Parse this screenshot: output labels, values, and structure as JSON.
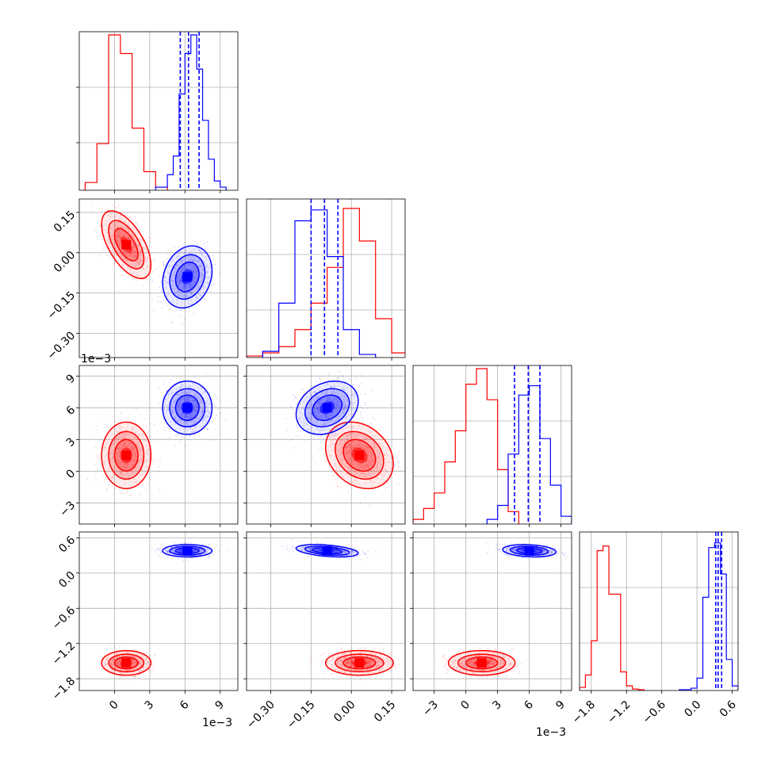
{
  "chart_data": {
    "type": "corner",
    "series": [
      {
        "color": "#ff0000",
        "x1_hist": {
          "edges_e3": [
            -2.5,
            -1.5,
            -0.5,
            0.5,
            1.5,
            2.5,
            3.5,
            4.5
          ],
          "counts": [
            0.05,
            0.3,
            1.0,
            0.88,
            0.4,
            0.12,
            0.02
          ]
        },
        "x2_hist": {
          "edges": [
            -0.39,
            -0.33,
            -0.27,
            -0.21,
            -0.15,
            -0.09,
            -0.03,
            0.03,
            0.09,
            0.15,
            0.21
          ],
          "counts": [
            0.01,
            0.03,
            0.07,
            0.18,
            0.35,
            0.58,
            0.96,
            0.75,
            0.25,
            0.03
          ]
        },
        "x3_hist": {
          "edges_e3": [
            -5,
            -4,
            -3,
            -2,
            -1,
            0,
            1,
            2,
            3,
            4,
            5
          ],
          "counts": [
            0.03,
            0.1,
            0.2,
            0.4,
            0.6,
            0.9,
            1.0,
            0.8,
            0.35,
            0.08
          ]
        },
        "x4_hist": {
          "edges": [
            -2.0,
            -1.9,
            -1.8,
            -1.7,
            -1.6,
            -1.5,
            -1.4,
            -1.3,
            -1.2,
            -1.1,
            -1.0,
            -0.9
          ],
          "counts": [
            0.02,
            0.1,
            0.32,
            0.9,
            0.93,
            0.62,
            0.62,
            0.12,
            0.03,
            0.01,
            0.005
          ]
        },
        "x1": {
          "mean_e3": 1.0,
          "sd_e3": 1.0
        },
        "x2": {
          "mean": 0.03,
          "sd": 0.06
        },
        "x3": {
          "mean_e3": 1.5,
          "sd_e3": 1.5
        },
        "x4": {
          "mean": -1.53,
          "sd": 0.1
        },
        "corr": {
          "x1_x2": -0.6,
          "x1_x3": 0.0,
          "x2_x3": -0.25,
          "x1_x4": 0.0,
          "x2_x4": 0.0,
          "x3_x4": 0.0
        }
      },
      {
        "color": "#0000ff",
        "x1_hist": {
          "edges_e3": [
            3.5,
            4.5,
            5.0,
            5.5,
            6.0,
            6.5,
            7.0,
            7.5,
            8.0,
            8.5,
            9.0,
            9.5
          ],
          "counts": [
            0.02,
            0.1,
            0.22,
            0.62,
            0.88,
            1.0,
            0.78,
            0.45,
            0.2,
            0.06,
            0.02
          ]
        },
        "x2_hist": {
          "edges": [
            -0.33,
            -0.27,
            -0.21,
            -0.15,
            -0.09,
            -0.03,
            0.03,
            0.09
          ],
          "counts": [
            0.04,
            0.35,
            0.88,
            0.95,
            0.65,
            0.18,
            0.02
          ]
        },
        "x3_hist": {
          "edges_e3": [
            2,
            3,
            4,
            5,
            6,
            7,
            8,
            9,
            10
          ],
          "counts": [
            0.03,
            0.12,
            0.45,
            0.83,
            0.89,
            0.55,
            0.25,
            0.05
          ]
        },
        "x4_hist": {
          "edges": [
            -0.3,
            -0.1,
            0.0,
            0.1,
            0.2,
            0.3,
            0.4,
            0.5,
            0.6,
            0.7
          ],
          "counts": [
            0.005,
            0.015,
            0.08,
            0.6,
            0.92,
            0.95,
            0.75,
            0.2,
            0.03
          ]
        },
        "x1": {
          "mean_e3": 6.2,
          "sd_e3": 1.0
        },
        "x2": {
          "mean": -0.09,
          "sd": 0.055
        },
        "x3": {
          "mean_e3": 6.0,
          "sd_e3": 1.2
        },
        "x4": {
          "mean": 0.38,
          "sd": 0.05
        },
        "corr": {
          "x1_x2": 0.2,
          "x1_x3": 0.0,
          "x2_x3": 0.25,
          "x1_x4": 0.0,
          "x2_x4": -0.4,
          "x3_x4": -0.2
        },
        "quantile_lines": {
          "x1_e3": [
            5.6,
            6.3,
            7.2
          ],
          "x2": [
            -0.15,
            -0.1,
            -0.05
          ],
          "x3_e3": [
            4.6,
            5.9,
            7.0
          ],
          "x4": [
            0.32,
            0.36,
            0.42
          ]
        }
      }
    ],
    "axes": {
      "x1": {
        "range_e3": [
          -3,
          10.5
        ],
        "ticks": [
          0,
          3,
          6,
          9
        ],
        "tick_labels": [
          "0",
          "3",
          "6",
          "9"
        ],
        "offset_label": "1e−3"
      },
      "x2": {
        "range": [
          -0.39,
          0.2
        ],
        "ticks": [
          -0.3,
          -0.15,
          0.0,
          0.15
        ],
        "tick_labels": [
          "−0.30",
          "−0.15",
          "0.00",
          "0.15"
        ]
      },
      "x3": {
        "range_e3": [
          -5,
          10
        ],
        "ticks": [
          -3,
          0,
          3,
          6,
          9
        ],
        "tick_labels": [
          "−3",
          "0",
          "3",
          "6",
          "9"
        ],
        "offset_label": "1e−3"
      },
      "x4": {
        "range": [
          -2.0,
          0.7
        ],
        "ticks": [
          -1.8,
          -1.2,
          -0.6,
          0.0,
          0.6
        ],
        "tick_labels": [
          "−1.8",
          "−1.2",
          "−0.6",
          "0.0",
          "0.6"
        ]
      }
    },
    "x2_row_ticks": [
      0.15,
      0.0,
      -0.15,
      -0.3
    ],
    "x2_row_labels": [
      "0.15",
      "0.00",
      "−0.15",
      "−0.30"
    ],
    "x3_row_ticks": [
      9,
      6,
      3,
      0,
      -3
    ],
    "x3_row_labels": [
      "9",
      "6",
      "3",
      "0",
      "−3"
    ],
    "x4_row_ticks": [
      0.6,
      0.0,
      -0.6,
      -1.2,
      -1.8
    ],
    "x4_row_labels": [
      "0.6",
      "0.0",
      "−0.6",
      "−1.2",
      "−1.8"
    ],
    "grid": true
  }
}
